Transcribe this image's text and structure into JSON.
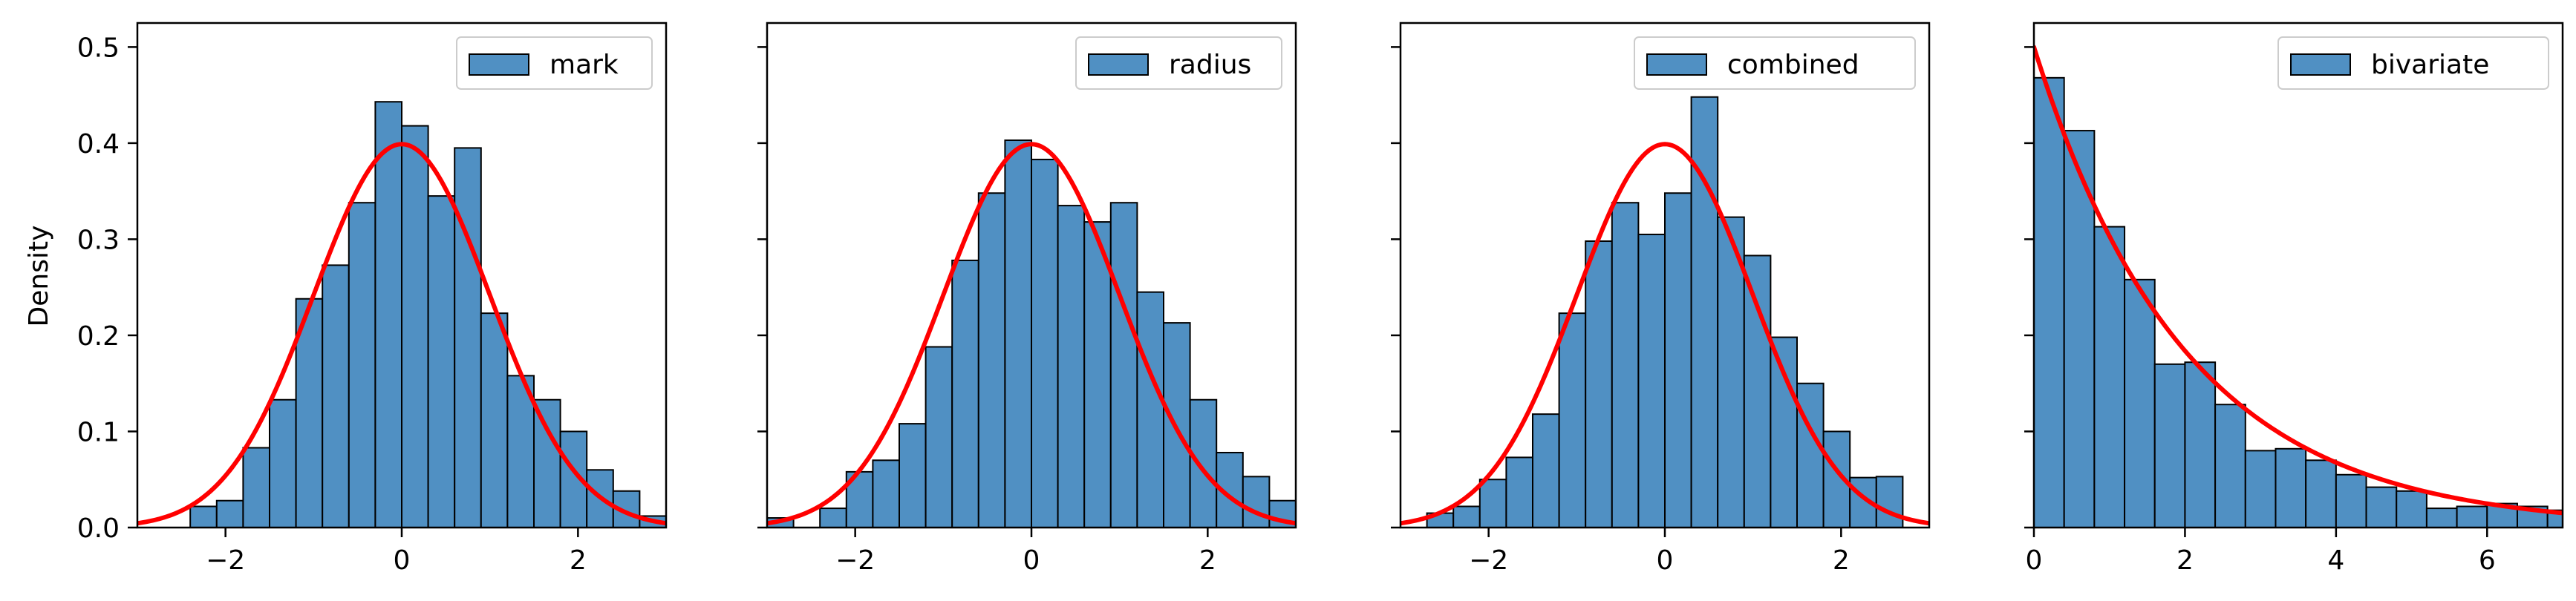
{
  "chart_data": {
    "type": "histogram",
    "ylabel": "Density",
    "ylim": [
      0,
      0.525
    ],
    "yticks": [
      0.0,
      0.1,
      0.2,
      0.3,
      0.4,
      0.5
    ],
    "ytick_labels": [
      "0.0",
      "0.1",
      "0.2",
      "0.3",
      "0.4",
      "0.5"
    ],
    "bar_color": "#5090c3",
    "curve_color": "#ff0000",
    "legend_location": "upper right",
    "panels": [
      {
        "legend": "mark",
        "xlim": [
          -3.0,
          3.0
        ],
        "xticks": [
          -2,
          0,
          2
        ],
        "xtick_labels": [
          "−2",
          "0",
          "2"
        ],
        "bin_edges": [
          -2.4,
          -2.1,
          -1.8,
          -1.5,
          -1.2,
          -0.9,
          -0.6,
          -0.3,
          0.0,
          0.3,
          0.6,
          0.9,
          1.2,
          1.5,
          1.8,
          2.1,
          2.4,
          2.7,
          3.0
        ],
        "values": [
          0.022,
          0.028,
          0.083,
          0.133,
          0.238,
          0.273,
          0.338,
          0.443,
          0.418,
          0.345,
          0.395,
          0.223,
          0.158,
          0.133,
          0.1,
          0.06,
          0.038,
          0.012
        ],
        "curve": {
          "kind": "normal",
          "mu": 0.0,
          "sigma": 1.0,
          "x_range": [
            -3.0,
            3.0
          ]
        }
      },
      {
        "legend": "radius",
        "xlim": [
          -3.0,
          3.0
        ],
        "xticks": [
          -2,
          0,
          2
        ],
        "xtick_labels": [
          "−2",
          "0",
          "2"
        ],
        "bin_edges": [
          -3.0,
          -2.7,
          -2.4,
          -2.1,
          -1.8,
          -1.5,
          -1.2,
          -0.9,
          -0.6,
          -0.3,
          0.0,
          0.3,
          0.6,
          0.9,
          1.2,
          1.5,
          1.8,
          2.1,
          2.4,
          2.7,
          3.0
        ],
        "values": [
          0.01,
          0.0,
          0.02,
          0.058,
          0.07,
          0.108,
          0.188,
          0.278,
          0.348,
          0.403,
          0.383,
          0.335,
          0.318,
          0.338,
          0.245,
          0.213,
          0.133,
          0.078,
          0.053,
          0.028,
          0.018
        ],
        "curve": {
          "kind": "normal",
          "mu": 0.0,
          "sigma": 1.0,
          "x_range": [
            -3.0,
            3.0
          ]
        }
      },
      {
        "legend": "combined",
        "xlim": [
          -3.0,
          3.0
        ],
        "xticks": [
          -2,
          0,
          2
        ],
        "xtick_labels": [
          "−2",
          "0",
          "2"
        ],
        "bin_edges": [
          -2.7,
          -2.4,
          -2.1,
          -1.8,
          -1.5,
          -1.2,
          -0.9,
          -0.6,
          -0.3,
          0.0,
          0.3,
          0.6,
          0.9,
          1.2,
          1.5,
          1.8,
          2.1,
          2.4,
          2.7
        ],
        "values": [
          0.015,
          0.022,
          0.05,
          0.073,
          0.118,
          0.223,
          0.298,
          0.338,
          0.305,
          0.348,
          0.448,
          0.323,
          0.283,
          0.198,
          0.15,
          0.1,
          0.052,
          0.053
        ],
        "curve": {
          "kind": "normal",
          "mu": 0.0,
          "sigma": 1.0,
          "x_range": [
            -3.0,
            3.0
          ]
        }
      },
      {
        "legend": "bivariate",
        "xlim": [
          0.0,
          7.0
        ],
        "xticks": [
          0,
          2,
          4,
          6
        ],
        "xtick_labels": [
          "0",
          "2",
          "4",
          "6"
        ],
        "bin_edges": [
          0.0,
          0.4,
          0.8,
          1.2,
          1.6,
          2.0,
          2.4,
          2.8,
          3.2,
          3.6,
          4.0,
          4.4,
          4.8,
          5.2,
          5.6,
          6.0,
          6.4,
          6.8,
          7.0
        ],
        "values": [
          0.468,
          0.413,
          0.313,
          0.258,
          0.17,
          0.172,
          0.128,
          0.08,
          0.082,
          0.07,
          0.055,
          0.042,
          0.038,
          0.02,
          0.022,
          0.025,
          0.022,
          0.018
        ],
        "curve": {
          "kind": "exponential",
          "scale": 2.0,
          "x_range": [
            0.0,
            7.0
          ]
        }
      }
    ]
  }
}
